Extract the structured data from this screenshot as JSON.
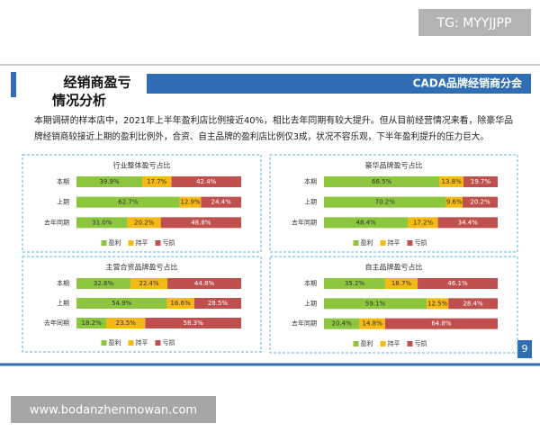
{
  "watermark": "TG: MYYJJPP",
  "slide": {
    "title": [
      "经销商盈亏",
      "情况分析"
    ],
    "brand": "CADA品牌经销商分会",
    "paragraph": [
      "本期调研的样本店中，2021年上半年盈利店比例接近40%，相比去年同期有较大提升。但从目前经营情况来看，除豪华品",
      "牌经销商较接近上期的盈利比例外，合资、自主品牌的盈利店比例仅3成，状况不容乐观，下半年盈利提升的压力巨大。"
    ],
    "page_number": "9"
  },
  "footer": "www.bodanzhenmowan.com",
  "chart_data": [
    {
      "type": "stacked_bar",
      "title": "行业整体盈亏占比",
      "categories": [
        "本期",
        "上期",
        "去年同期"
      ],
      "xlim": [
        0,
        100
      ],
      "series": [
        {
          "name": "盈利",
          "color": "#8cc63e",
          "values": [
            39.9,
            62.7,
            31.0
          ],
          "value_labels": [
            "39.9%",
            "62.7%",
            "31.0%"
          ]
        },
        {
          "name": "持平",
          "color": "#f5b914",
          "values": [
            17.7,
            12.9,
            20.2
          ],
          "value_labels": [
            "17.7%",
            "12.9%",
            "20.2%"
          ]
        },
        {
          "name": "亏损",
          "color": "#c0504d",
          "values": [
            42.4,
            24.4,
            48.8
          ],
          "value_labels": [
            "42.4%",
            "24.4%",
            "48.8%"
          ]
        }
      ]
    },
    {
      "type": "stacked_bar",
      "title": "豪华品牌盈亏占比",
      "categories": [
        "本期",
        "上期",
        "去年同期"
      ],
      "xlim": [
        0,
        100
      ],
      "series": [
        {
          "name": "盈利",
          "color": "#8cc63e",
          "values": [
            66.5,
            70.2,
            48.4
          ],
          "value_labels": [
            "66.5%",
            "70.2%",
            "48.4%"
          ]
        },
        {
          "name": "持平",
          "color": "#f5b914",
          "values": [
            13.8,
            9.6,
            17.2
          ],
          "value_labels": [
            "13.8%",
            "9.6%",
            "17.2%"
          ]
        },
        {
          "name": "亏损",
          "color": "#c0504d",
          "values": [
            19.7,
            20.2,
            34.4
          ],
          "value_labels": [
            "19.7%",
            "20.2%",
            "34.4%"
          ]
        }
      ]
    },
    {
      "type": "stacked_bar",
      "title": "主营合资品牌盈亏占比",
      "categories": [
        "本期",
        "上期",
        "去年同期"
      ],
      "xlim": [
        0,
        100
      ],
      "series": [
        {
          "name": "盈利",
          "color": "#8cc63e",
          "values": [
            32.8,
            54.9,
            18.2
          ],
          "value_labels": [
            "32.8%",
            "54.9%",
            "18.2%"
          ]
        },
        {
          "name": "持平",
          "color": "#f5b914",
          "values": [
            22.4,
            16.6,
            23.5
          ],
          "value_labels": [
            "22.4%",
            "16.6%",
            "23.5%"
          ]
        },
        {
          "name": "亏损",
          "color": "#c0504d",
          "values": [
            44.8,
            28.5,
            58.3
          ],
          "value_labels": [
            "44.8%",
            "28.5%",
            "58.3%"
          ]
        }
      ]
    },
    {
      "type": "stacked_bar",
      "title": "自主品牌盈亏占比",
      "categories": [
        "本期",
        "上期",
        "去年同期"
      ],
      "xlim": [
        0,
        100
      ],
      "series": [
        {
          "name": "盈利",
          "color": "#8cc63e",
          "values": [
            35.2,
            59.1,
            20.4
          ],
          "value_labels": [
            "35.2%",
            "59.1%",
            "20.4%"
          ]
        },
        {
          "name": "持平",
          "color": "#f5b914",
          "values": [
            18.7,
            12.5,
            14.8
          ],
          "value_labels": [
            "18.7%",
            "12.5%",
            "14.8%"
          ]
        },
        {
          "name": "亏损",
          "color": "#c0504d",
          "values": [
            46.1,
            28.4,
            64.8
          ],
          "value_labels": [
            "46.1%",
            "28.4%",
            "64.8%"
          ]
        }
      ]
    }
  ]
}
